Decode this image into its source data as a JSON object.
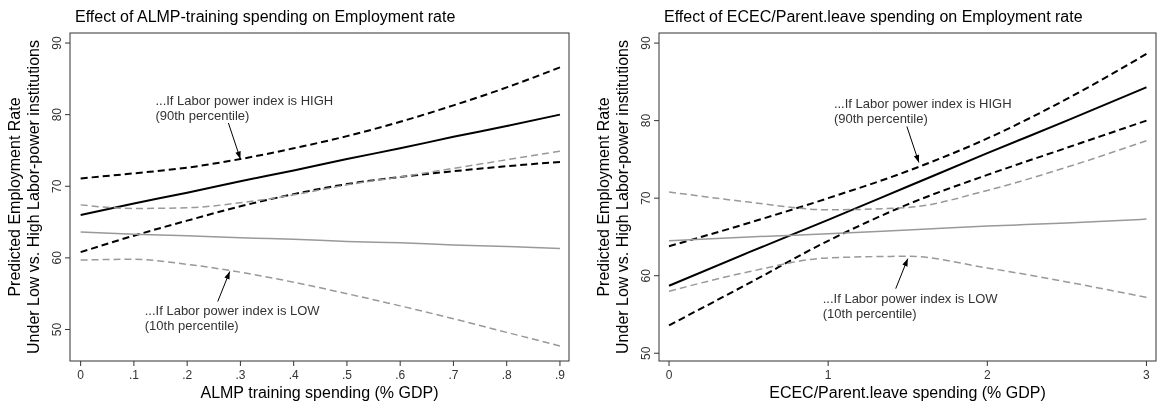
{
  "chart_data": [
    {
      "type": "line",
      "title": "Effect of ALMP-training spending on Employment rate",
      "xlabel": "ALMP training spending (% GDP)",
      "ylabel": "Predicted Employment Rate\nUnder Low vs. High Labor-power institutions",
      "x": [
        0,
        0.1,
        0.2,
        0.3,
        0.4,
        0.5,
        0.6,
        0.7,
        0.8,
        0.9
      ],
      "xlim": [
        -0.02,
        0.917
      ],
      "xticks": [
        0,
        {
          "value": 0.1,
          "label": ".1"
        },
        {
          "value": 0.2,
          "label": ".2"
        },
        {
          "value": 0.3,
          "label": ".3"
        },
        {
          "value": 0.4,
          "label": ".4"
        },
        {
          "value": 0.5,
          "label": ".5"
        },
        {
          "value": 0.6,
          "label": ".6"
        },
        {
          "value": 0.7,
          "label": ".7"
        },
        {
          "value": 0.8,
          "label": ".8"
        },
        {
          "value": 0.9,
          "label": ".9"
        }
      ],
      "ylim": [
        45.6,
        91.4
      ],
      "yticks": [
        50,
        60,
        70,
        80,
        90
      ],
      "grid": false,
      "series": [
        {
          "color": "#000000",
          "line_style": "solid",
          "values": [
            66,
            67.6,
            69.1,
            70.7,
            72.2,
            73.8,
            75.3,
            76.9,
            78.4,
            80
          ]
        },
        {
          "color": "#000000",
          "line_style": "dashed",
          "values": [
            71.1,
            71.8,
            72.6,
            73.8,
            75.3,
            77,
            79,
            81.3,
            83.8,
            86.6
          ]
        },
        {
          "color": "#000000",
          "line_style": "dashed",
          "values": [
            60.8,
            63.1,
            65.2,
            67.2,
            68.9,
            70.3,
            71.3,
            72.1,
            72.8,
            73.4
          ]
        },
        {
          "color": "#999999",
          "line_style": "solid",
          "values": [
            63.6,
            63.3,
            63.1,
            62.8,
            62.6,
            62.3,
            62.1,
            61.8,
            61.6,
            61.3
          ]
        },
        {
          "color": "#999999",
          "line_style": "dashed",
          "values": [
            67.4,
            66.9,
            67,
            67.7,
            68.8,
            70.2,
            71.3,
            72.5,
            73.7,
            74.9
          ]
        },
        {
          "color": "#999999",
          "line_style": "dashed",
          "values": [
            59.7,
            59.8,
            59.1,
            58,
            56.6,
            55,
            53.3,
            51.5,
            49.6,
            47.7
          ]
        }
      ],
      "annotations": [
        {
          "text": "...If Labor power index is HIGH\n(90th percentile)",
          "x": 0.3,
          "y": 73.8
        },
        {
          "text": "...If Labor power index is LOW\n(10th percentile)",
          "x": 0.28,
          "y": 58.1
        }
      ]
    },
    {
      "type": "line",
      "title": "Effect of ECEC/Parent.leave spending on Employment rate",
      "xlabel": "ECEC/Parent.leave spending (% GDP)",
      "ylabel": "Predicted Employment Rate\nUnder Low vs. High Labor-power institutions",
      "x": [
        0,
        0.5,
        1,
        1.5,
        2,
        2.5,
        3
      ],
      "xlim": [
        -0.063,
        3.06
      ],
      "xticks": [
        0,
        1,
        2,
        3
      ],
      "ylim": [
        49,
        91.3
      ],
      "yticks": [
        50,
        60,
        70,
        80,
        90
      ],
      "grid": false,
      "series": [
        {
          "color": "#000000",
          "line_style": "solid",
          "values": [
            58.7,
            63,
            67.2,
            71.5,
            75.8,
            80,
            84.3
          ]
        },
        {
          "color": "#000000",
          "line_style": "dashed",
          "values": [
            63.8,
            66.8,
            70,
            73.5,
            77.7,
            82.8,
            88.6
          ]
        },
        {
          "color": "#000000",
          "line_style": "dashed",
          "values": [
            53.6,
            59,
            64.5,
            69.2,
            73,
            76.5,
            80
          ]
        },
        {
          "color": "#999999",
          "line_style": "solid",
          "values": [
            64.5,
            65,
            65.4,
            65.9,
            66.4,
            66.8,
            67.3
          ]
        },
        {
          "color": "#999999",
          "line_style": "dashed",
          "values": [
            70.8,
            69.5,
            68.5,
            68.8,
            71,
            74,
            77.4
          ]
        },
        {
          "color": "#999999",
          "line_style": "dashed",
          "values": [
            58,
            60.5,
            62.3,
            62.5,
            61,
            59.2,
            57.2
          ]
        }
      ],
      "annotations": [
        {
          "text": "...If Labor power index is HIGH\n(90th percentile)",
          "x": 1.57,
          "y": 74.6
        },
        {
          "text": "...If Labor power index is LOW\n(10th percentile)",
          "x": 1.5,
          "y": 62.2
        }
      ]
    }
  ]
}
